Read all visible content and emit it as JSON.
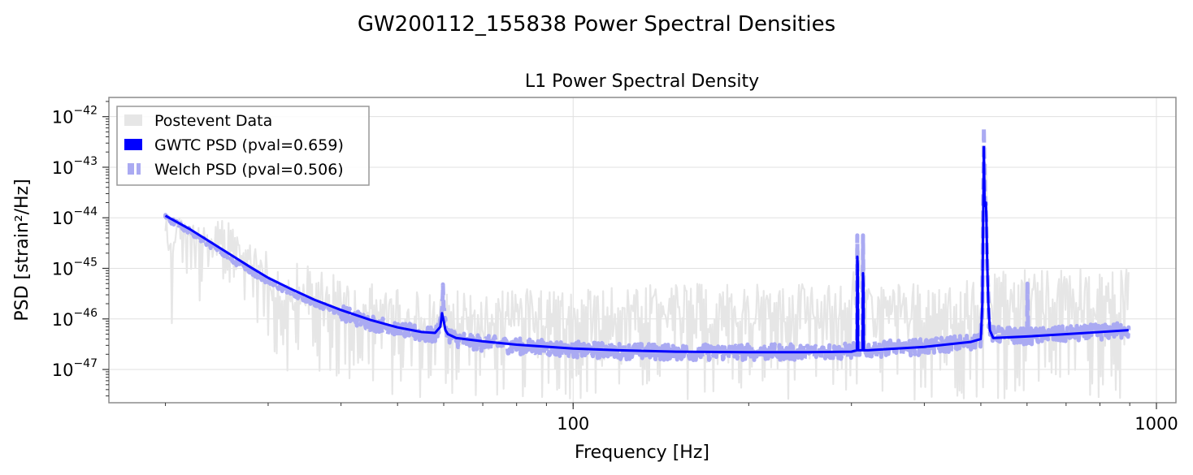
{
  "figure": {
    "title": "GW200112_155838 Power Spectral Densities"
  },
  "chart_data": {
    "type": "line",
    "title": "L1 Power Spectral Density",
    "xlabel": "Frequency [Hz]",
    "ylabel": "PSD [strain²/Hz]",
    "xscale": "log",
    "yscale": "log",
    "xlim": [
      16,
      1080
    ],
    "ylim": [
      2.2e-48,
      2.4e-42
    ],
    "grid": true,
    "legend_position": "top-left",
    "x_ticks": [
      {
        "value": 100,
        "base": "100",
        "exp": ""
      },
      {
        "value": 1000,
        "base": "1000",
        "exp": ""
      }
    ],
    "y_ticks": [
      {
        "value": 1e-42,
        "base": "10",
        "exp": "−42"
      },
      {
        "value": 1e-43,
        "base": "10",
        "exp": "−43"
      },
      {
        "value": 1e-44,
        "base": "10",
        "exp": "−44"
      },
      {
        "value": 1e-45,
        "base": "10",
        "exp": "−45"
      },
      {
        "value": 1e-46,
        "base": "10",
        "exp": "−46"
      },
      {
        "value": 1e-47,
        "base": "10",
        "exp": "−47"
      }
    ],
    "series": [
      {
        "name": "Postevent Data",
        "color": "#e6e6e6",
        "style": "noisy-fill",
        "x": [
          20,
          20.5,
          21,
          22,
          23,
          24,
          25,
          26,
          28,
          30,
          32,
          35,
          38,
          42,
          46,
          50,
          55,
          59.8,
          65,
          70,
          80,
          100,
          150,
          200,
          300,
          307,
          311,
          315,
          320,
          400,
          500,
          505,
          510,
          515,
          520,
          600,
          700,
          800,
          896
        ],
        "min": [
          8e-46,
          2.5e-47,
          1e-45,
          5e-46,
          1e-46,
          5e-46,
          8e-47,
          3e-46,
          2e-46,
          2e-47,
          1e-47,
          5e-48,
          5e-48,
          4e-48,
          3e-48,
          2.5e-48,
          2.5e-48,
          2.5e-48,
          2.5e-48,
          2.5e-48,
          2.5e-48,
          2.5e-48,
          2.5e-48,
          2.5e-48,
          2.5e-48,
          2.5e-48,
          2.5e-48,
          2.5e-48,
          2.5e-48,
          2.5e-48,
          2.5e-48,
          2.5e-48,
          2.5e-48,
          2.5e-48,
          2.5e-48,
          2.5e-48,
          2.5e-48,
          2.5e-48,
          2.5e-48
        ],
        "max": [
          1.5e-44,
          1.5e-44,
          1.2e-44,
          1e-44,
          8e-45,
          5e-45,
          1.5e-44,
          6e-45,
          4e-45,
          2e-45,
          1e-45,
          1.5e-45,
          8e-46,
          6e-46,
          5e-46,
          4e-46,
          4e-46,
          3.5e-46,
          4e-46,
          3e-46,
          4e-46,
          4e-46,
          5e-46,
          5e-46,
          5e-46,
          3e-45,
          4e-45,
          4e-45,
          5e-46,
          5e-46,
          7e-46,
          7e-43,
          5e-43,
          1e-44,
          8e-46,
          1e-45,
          1e-45,
          1e-45,
          1e-45
        ]
      },
      {
        "name": "GWTC PSD (pval=0.659)",
        "color": "#0000ff",
        "style": "solid",
        "x": [
          20,
          22,
          24,
          26,
          28,
          30,
          33,
          36,
          40,
          45,
          50,
          55,
          58,
          59.2,
          59.6,
          60,
          60.4,
          61,
          63,
          70,
          80,
          100,
          120,
          150,
          200,
          250,
          300,
          306.5,
          307,
          307.5,
          308,
          313.5,
          314,
          314.5,
          315,
          320,
          400,
          480,
          500,
          503,
          506,
          507.5,
          509,
          510,
          511,
          513,
          515,
          518,
          525,
          600,
          700,
          800,
          896
        ],
        "y": [
          1.1e-44,
          6e-45,
          3.2e-45,
          1.8e-45,
          1.05e-45,
          6.5e-46,
          3.8e-46,
          2.4e-46,
          1.5e-46,
          9.5e-47,
          6.8e-47,
          5.5e-47,
          5.3e-47,
          7e-47,
          1.3e-46,
          9e-47,
          6e-47,
          5e-47,
          4.2e-47,
          3.6e-47,
          3.1e-47,
          2.6e-47,
          2.4e-47,
          2.25e-47,
          2.2e-47,
          2.2e-47,
          2.25e-47,
          2.4e-47,
          1.7e-45,
          1.2e-45,
          2.4e-47,
          2.4e-47,
          8e-46,
          5e-46,
          2.4e-47,
          2.4e-47,
          2.8e-47,
          3.5e-47,
          4e-47,
          2e-46,
          2.5e-43,
          2e-44,
          1.7e-44,
          2e-44,
          1e-44,
          1e-45,
          2e-46,
          6e-47,
          4.2e-47,
          4.5e-47,
          5e-47,
          5.5e-47,
          6e-47
        ]
      },
      {
        "name": "Welch PSD (pval=0.506)",
        "color": "#aaaaf2",
        "style": "dashed-noisy",
        "x": [
          20,
          22,
          24,
          26,
          28,
          30,
          33,
          36,
          40,
          45,
          50,
          55,
          58,
          59.4,
          59.8,
          60.2,
          61,
          63,
          70,
          80,
          100,
          120,
          150,
          200,
          250,
          300,
          306.5,
          307,
          308,
          313.5,
          314,
          315,
          320,
          400,
          480,
          500,
          503,
          506,
          508,
          510,
          513,
          516,
          520,
          600,
          601,
          603,
          700,
          800,
          896
        ],
        "y": [
          1e-44,
          5.5e-45,
          2.8e-45,
          1.5e-45,
          9e-46,
          5.5e-46,
          3.2e-46,
          2.1e-46,
          1.3e-46,
          8.5e-47,
          6.2e-47,
          5e-47,
          4.6e-47,
          1e-46,
          3.5e-46,
          9e-47,
          5e-47,
          4e-47,
          3.3e-47,
          2.9e-47,
          2.5e-47,
          2.3e-47,
          2.2e-47,
          2.2e-47,
          2.2e-47,
          2.3e-47,
          2.5e-47,
          4.5e-45,
          2.5e-47,
          2.5e-47,
          4.5e-45,
          2.5e-47,
          2.5e-47,
          2.8e-47,
          3.5e-47,
          4e-47,
          2e-46,
          6e-43,
          3e-44,
          2e-44,
          1e-45,
          1e-46,
          5e-47,
          4.5e-47,
          5e-46,
          4.5e-47,
          5e-47,
          5.5e-47,
          6e-47
        ]
      }
    ]
  }
}
